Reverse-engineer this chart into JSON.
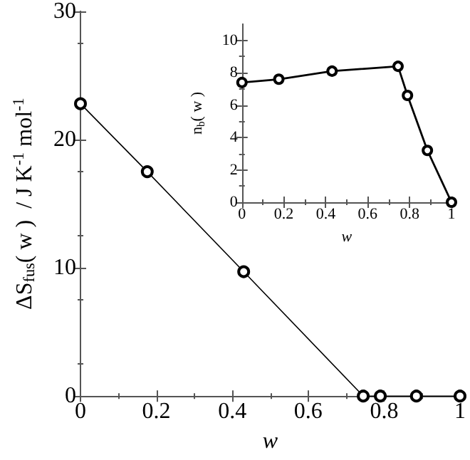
{
  "chart_data": [
    {
      "type": "line",
      "xlabel": "w",
      "ylabel": "ΔS$_{fus}$( w )  / J K$^{-1}$ mol$^{-1}$",
      "x": [
        0,
        0.176,
        0.43,
        0.745,
        0.79,
        0.885,
        1
      ],
      "series": [
        {
          "color": "#000000",
          "values": [
            22.8,
            17.5,
            9.7,
            0,
            0,
            0,
            0
          ]
        }
      ],
      "xlim": [
        0,
        1
      ],
      "xticks": [
        0,
        0.2,
        0.4,
        0.6,
        0.8,
        1
      ],
      "ylim": [
        0,
        30
      ],
      "yticks": [
        0,
        10,
        20,
        30
      ],
      "marker": "circle",
      "line_style": "solid",
      "grid": false
    },
    {
      "type": "line",
      "xlabel": "w",
      "ylabel": "n$_{b}$( w )",
      "x": [
        0,
        0.176,
        0.43,
        0.745,
        0.79,
        0.885,
        1
      ],
      "series": [
        {
          "color": "#000000",
          "values": [
            7.4,
            7.6,
            8.1,
            8.4,
            6.6,
            3.2,
            0
          ]
        }
      ],
      "xlim": [
        0,
        1
      ],
      "xticks": [
        0,
        0.2,
        0.4,
        0.6,
        0.8,
        1
      ],
      "ylim": [
        0,
        11
      ],
      "yticks": [
        0,
        2,
        4,
        6,
        8,
        10
      ],
      "marker": "circle",
      "line_style": "solid",
      "grid": false
    }
  ]
}
